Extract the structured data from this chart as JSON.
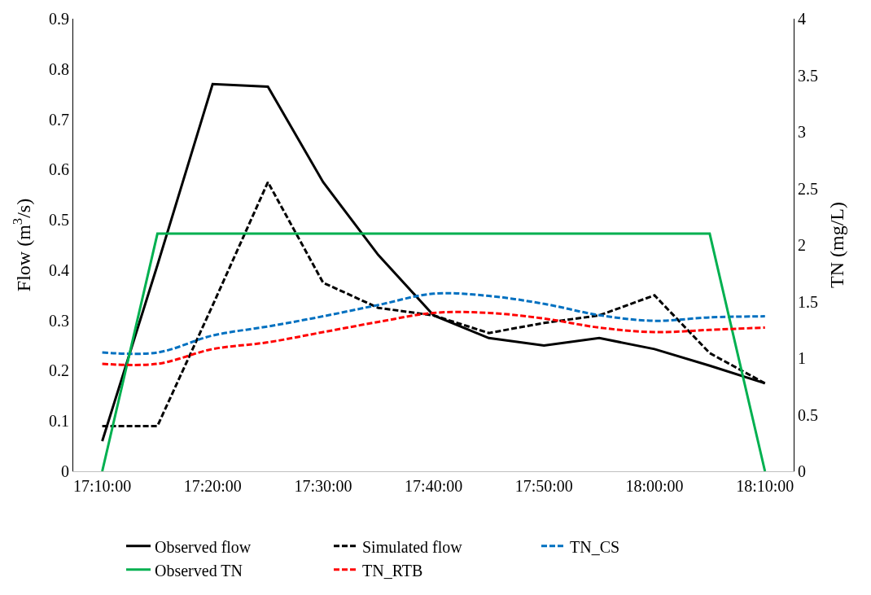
{
  "chart_data": {
    "type": "line",
    "ylabel": "Flow (m$^{3}$/s)",
    "y2label": "TN (mg/L)",
    "x": [
      17.1667,
      17.25,
      17.3333,
      17.4167,
      17.5,
      17.5833,
      17.6667,
      17.75,
      17.8333,
      17.9167,
      18.0,
      18.0833,
      18.1667
    ],
    "xlim": [
      17.123,
      18.21
    ],
    "xticks": [
      {
        "value": 17.1667,
        "label": "17:10:00"
      },
      {
        "value": 17.3333,
        "label": "17:20:00"
      },
      {
        "value": 17.5,
        "label": "17:30:00"
      },
      {
        "value": 17.6667,
        "label": "17:40:00"
      },
      {
        "value": 17.8333,
        "label": "17:50:00"
      },
      {
        "value": 18.0,
        "label": "18:00:00"
      },
      {
        "value": 18.1667,
        "label": "18:10:00"
      }
    ],
    "ylim": [
      0,
      0.9
    ],
    "yticks": [
      0,
      0.1,
      0.2,
      0.3,
      0.4,
      0.5,
      0.6,
      0.7,
      0.8,
      0.9
    ],
    "y2lim": [
      0,
      4
    ],
    "y2ticks": [
      0,
      0.5,
      1,
      1.5,
      2,
      2.5,
      3,
      3.5,
      4
    ],
    "legend": "bottom",
    "marker": "none",
    "series": [
      {
        "name": "Observed flow",
        "color": "#000000",
        "line_style": "solid",
        "values": [
          0.06,
          0.41,
          0.77,
          0.765,
          0.575,
          0.43,
          0.31,
          0.265,
          0.25,
          0.265,
          0.243,
          0.21,
          0.175
        ]
      },
      {
        "name": "Simulated flow",
        "color": "#000000",
        "line_style": "dashed",
        "values": [
          0.09,
          0.09,
          0.33,
          0.575,
          0.375,
          0.325,
          0.31,
          0.275,
          0.295,
          0.31,
          0.35,
          0.235,
          0.175
        ]
      },
      {
        "name": "TN_CS",
        "color": "#0070c0",
        "line_style": "dashed",
        "axis": "y2",
        "values": [
          1.05,
          1.05,
          1.2,
          1.28,
          1.37,
          1.47,
          1.57,
          1.55,
          1.48,
          1.38,
          1.33,
          1.36,
          1.37
        ]
      },
      {
        "name": "Observed TN",
        "color": "#00b050",
        "line_style": "solid",
        "axis": "y2",
        "values": [
          0,
          2.1,
          2.1,
          2.1,
          2.1,
          2.1,
          2.1,
          2.1,
          2.1,
          2.1,
          2.1,
          2.1,
          0
        ]
      },
      {
        "name": "TN_RTB",
        "color": "#ff0000",
        "line_style": "dashed",
        "axis": "y2",
        "values": [
          0.95,
          0.95,
          1.08,
          1.14,
          1.23,
          1.32,
          1.4,
          1.4,
          1.35,
          1.27,
          1.23,
          1.25,
          1.27
        ]
      }
    ]
  }
}
